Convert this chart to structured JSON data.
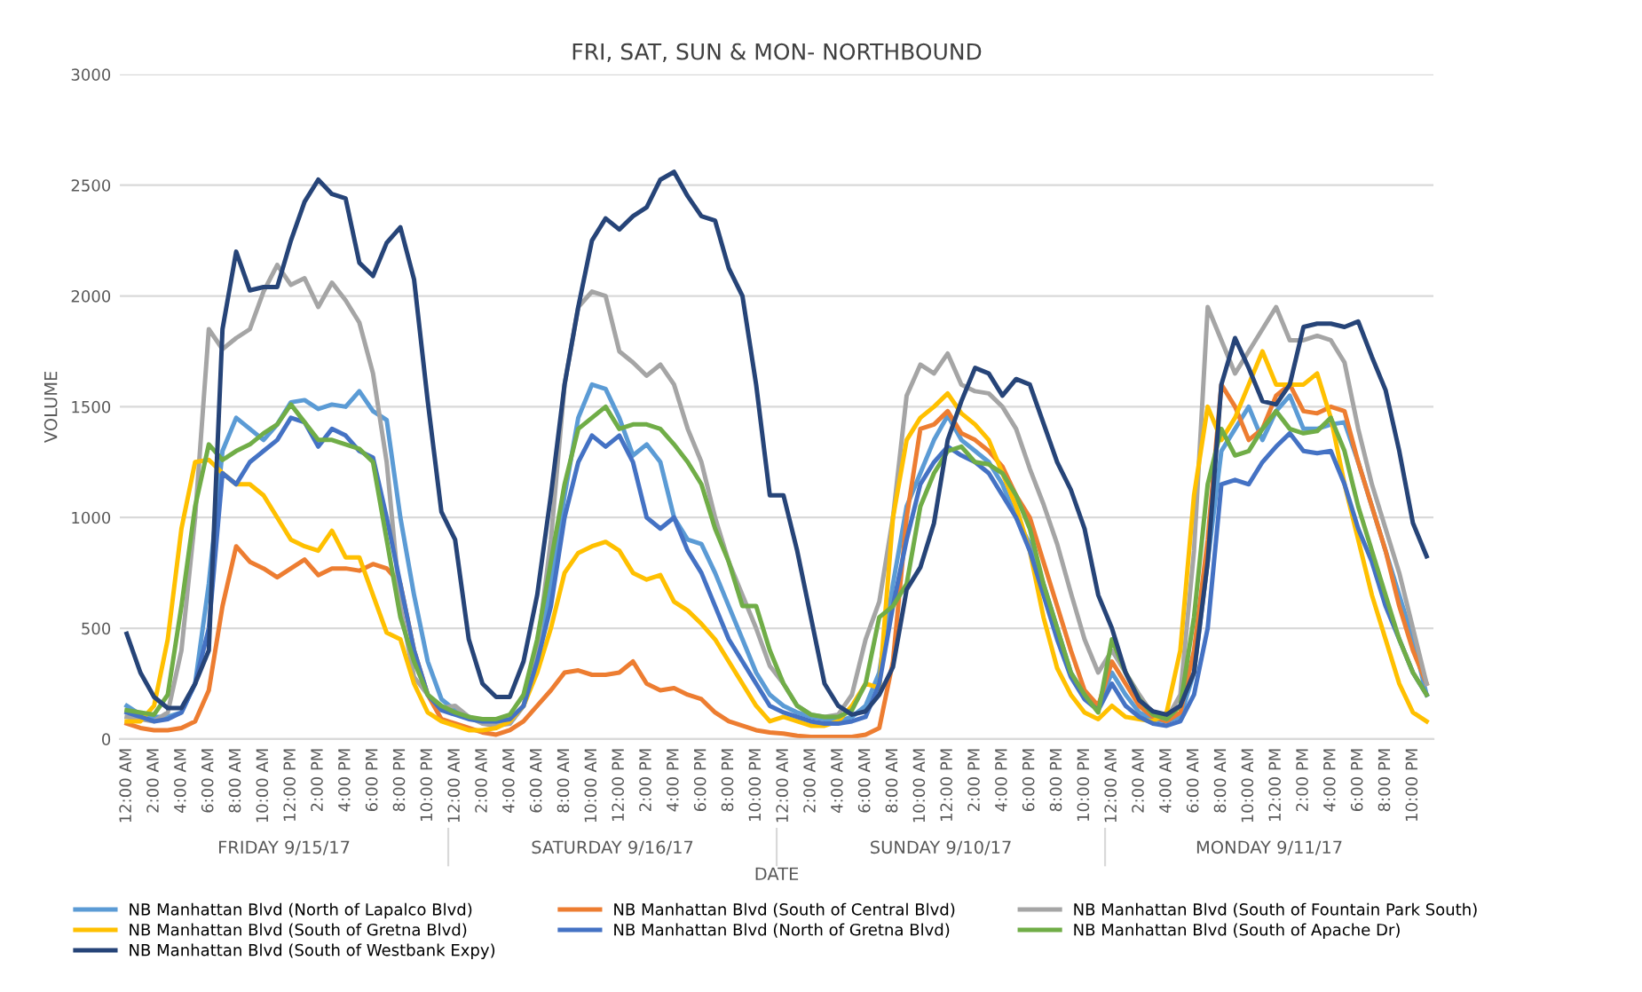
{
  "chart_data": {
    "type": "line",
    "title": "FRI, SAT, SUN & MON- NORTHBOUND",
    "xlabel": "DATE",
    "ylabel": "VOLUME",
    "categories": [
      "12:00 AM",
      null,
      "2:00 AM",
      null,
      "4:00 AM",
      null,
      "6:00 AM",
      null,
      "8:00 AM",
      null,
      "10:00 AM",
      null,
      "12:00 PM",
      null,
      "2:00 PM",
      null,
      "4:00 PM",
      null,
      "6:00 PM",
      null,
      "8:00 PM",
      null,
      "10:00 PM",
      null,
      "12:00 AM",
      null,
      "2:00 AM",
      null,
      "4:00 AM",
      null,
      "6:00 AM",
      null,
      "8:00 AM",
      null,
      "10:00 AM",
      null,
      "12:00 PM",
      null,
      "2:00 PM",
      null,
      "4:00 PM",
      null,
      "6:00 PM",
      null,
      "8:00 PM",
      null,
      "10:00 PM",
      null,
      "12:00 AM",
      null,
      "2:00 AM",
      null,
      "4:00 AM",
      null,
      "6:00 AM",
      null,
      "8:00 AM",
      null,
      "10:00 AM",
      null,
      "12:00 PM",
      null,
      "2:00 PM",
      null,
      "4:00 PM",
      null,
      "6:00 PM",
      null,
      "8:00 PM",
      null,
      "10:00 PM",
      null,
      "12:00 AM",
      null,
      "2:00 AM",
      null,
      "4:00 AM",
      null,
      "6:00 AM",
      null,
      "8:00 AM",
      null,
      "10:00 AM",
      null,
      "12:00 PM",
      null,
      "2:00 PM",
      null,
      "4:00 PM",
      null,
      "6:00 PM",
      null,
      "8:00 PM",
      null,
      "10:00 PM",
      null
    ],
    "annotations": [
      "FRIDAY 9/15/17",
      "SATURDAY 9/16/17",
      "SUNDAY 9/10/17",
      "MONDAY 9/11/17"
    ],
    "ylim": [
      0,
      3000
    ],
    "yticks": [
      0,
      500,
      1000,
      1500,
      2000,
      2500,
      3000
    ],
    "grid": "y",
    "legend": "bottom",
    "marker": "none",
    "line_style": "solid",
    "series": [
      {
        "name": "NB Manhattan Blvd (North of Lapalco Blvd)",
        "color": "#5b9bd5",
        "values": [
          150,
          110,
          100,
          100,
          120,
          250,
          700,
          1300,
          1450,
          1400,
          1350,
          1420,
          1520,
          1530,
          1490,
          1510,
          1500,
          1570,
          1480,
          1440,
          1000,
          650,
          350,
          180,
          130,
          100,
          80,
          70,
          70,
          150,
          350,
          700,
          1100,
          1450,
          1600,
          1580,
          1450,
          1280,
          1330,
          1250,
          1000,
          900,
          880,
          750,
          600,
          450,
          300,
          200,
          150,
          120,
          100,
          90,
          80,
          100,
          150,
          300,
          700,
          1050,
          1200,
          1350,
          1460,
          1350,
          1300,
          1250,
          1150,
          1000,
          880,
          700,
          500,
          300,
          200,
          150,
          300,
          200,
          120,
          90,
          80,
          100,
          300,
          800,
          1300,
          1400,
          1500,
          1350,
          1480,
          1550,
          1400,
          1400,
          1420,
          1430,
          1250,
          1050,
          850,
          650,
          450,
          200
        ]
      },
      {
        "name": "NB Manhattan Blvd (South of Central Blvd)",
        "color": "#ed7d31",
        "values": [
          70,
          50,
          40,
          40,
          50,
          80,
          220,
          600,
          870,
          800,
          770,
          730,
          770,
          810,
          740,
          770,
          770,
          760,
          790,
          770,
          700,
          400,
          200,
          90,
          70,
          50,
          30,
          20,
          40,
          80,
          150,
          220,
          300,
          310,
          290,
          290,
          300,
          350,
          250,
          220,
          230,
          200,
          180,
          120,
          80,
          60,
          40,
          30,
          25,
          15,
          10,
          10,
          10,
          10,
          20,
          50,
          350,
          1000,
          1400,
          1420,
          1480,
          1380,
          1350,
          1300,
          1230,
          1100,
          1000,
          800,
          600,
          400,
          220,
          150,
          350,
          250,
          150,
          100,
          80,
          120,
          400,
          900,
          1600,
          1500,
          1350,
          1400,
          1550,
          1600,
          1480,
          1470,
          1500,
          1480,
          1250,
          1050,
          850,
          600,
          400,
          250
        ]
      },
      {
        "name": "NB Manhattan Blvd (South of Fountain Park South)",
        "color": "#a5a5a5",
        "values": [
          100,
          90,
          80,
          120,
          400,
          1000,
          1850,
          1760,
          1810,
          1850,
          2020,
          2140,
          2050,
          2080,
          1950,
          2060,
          1980,
          1880,
          1650,
          1250,
          600,
          280,
          200,
          140,
          150,
          100,
          70,
          60,
          70,
          150,
          400,
          900,
          1600,
          1950,
          2020,
          2000,
          1750,
          1700,
          1640,
          1690,
          1600,
          1400,
          1250,
          1000,
          800,
          650,
          500,
          330,
          250,
          150,
          110,
          100,
          110,
          200,
          450,
          620,
          1000,
          1550,
          1690,
          1650,
          1740,
          1600,
          1570,
          1560,
          1500,
          1400,
          1220,
          1060,
          880,
          660,
          450,
          300,
          400,
          300,
          200,
          110,
          90,
          200,
          850,
          1950,
          1800,
          1650,
          1750,
          1850,
          1950,
          1800,
          1800,
          1820,
          1800,
          1700,
          1400,
          1150,
          950,
          750,
          500,
          250
        ]
      },
      {
        "name": "NB Manhattan Blvd (South of Gretna Blvd)",
        "color": "#ffc000",
        "values": [
          80,
          80,
          150,
          450,
          950,
          1250,
          1260,
          1200,
          1150,
          1150,
          1100,
          1000,
          900,
          870,
          850,
          940,
          820,
          820,
          650,
          480,
          450,
          250,
          120,
          80,
          60,
          40,
          40,
          50,
          80,
          150,
          300,
          500,
          750,
          840,
          870,
          890,
          850,
          750,
          720,
          740,
          620,
          580,
          520,
          450,
          350,
          250,
          150,
          80,
          100,
          80,
          60,
          60,
          80,
          150,
          250,
          230,
          1000,
          1350,
          1450,
          1500,
          1560,
          1470,
          1420,
          1350,
          1200,
          1050,
          850,
          550,
          320,
          200,
          120,
          90,
          150,
          100,
          90,
          80,
          120,
          400,
          1100,
          1500,
          1350,
          1450,
          1600,
          1750,
          1600,
          1600,
          1600,
          1650,
          1450,
          1150,
          900,
          650,
          450,
          250,
          120,
          80
        ]
      },
      {
        "name": "NB Manhattan Blvd (North of Gretna Blvd)",
        "color": "#4472c4",
        "values": [
          120,
          100,
          80,
          90,
          120,
          250,
          500,
          1200,
          1150,
          1250,
          1300,
          1350,
          1450,
          1430,
          1320,
          1400,
          1370,
          1300,
          1270,
          1000,
          700,
          400,
          200,
          130,
          110,
          90,
          80,
          80,
          90,
          150,
          350,
          600,
          1000,
          1250,
          1370,
          1320,
          1370,
          1250,
          1000,
          950,
          1000,
          850,
          750,
          600,
          450,
          350,
          250,
          150,
          120,
          100,
          80,
          70,
          70,
          80,
          100,
          250,
          600,
          900,
          1150,
          1250,
          1320,
          1280,
          1250,
          1200,
          1100,
          1000,
          850,
          650,
          450,
          280,
          180,
          130,
          250,
          150,
          100,
          70,
          60,
          80,
          200,
          500,
          1150,
          1170,
          1150,
          1250,
          1320,
          1380,
          1300,
          1290,
          1300,
          1150,
          950,
          800,
          600,
          450,
          300,
          200
        ]
      },
      {
        "name": "NB Manhattan Blvd (South of Apache Dr)",
        "color": "#70ad47",
        "values": [
          130,
          120,
          110,
          200,
          600,
          1050,
          1330,
          1260,
          1300,
          1330,
          1380,
          1420,
          1510,
          1430,
          1350,
          1350,
          1330,
          1310,
          1250,
          900,
          550,
          350,
          200,
          150,
          120,
          100,
          90,
          90,
          110,
          200,
          450,
          800,
          1150,
          1400,
          1450,
          1500,
          1400,
          1420,
          1420,
          1400,
          1330,
          1250,
          1150,
          950,
          800,
          600,
          600,
          400,
          250,
          150,
          110,
          100,
          100,
          130,
          250,
          550,
          600,
          700,
          1050,
          1200,
          1300,
          1320,
          1250,
          1240,
          1200,
          1100,
          950,
          700,
          500,
          300,
          200,
          120,
          450,
          300,
          180,
          110,
          90,
          150,
          550,
          1150,
          1400,
          1280,
          1300,
          1400,
          1480,
          1400,
          1380,
          1390,
          1450,
          1300,
          1050,
          850,
          650,
          450,
          300,
          200
        ]
      },
      {
        "name": "NB Manhattan Blvd (South of Westbank Expy)",
        "color": "#264478",
        "values": [
          475,
          300,
          190,
          140,
          140,
          250,
          400,
          1850,
          2200,
          2025,
          2040,
          2040,
          2250,
          2425,
          2525,
          2460,
          2440,
          2150,
          2090,
          2240,
          2310,
          2075,
          1525,
          1025,
          900,
          450,
          250,
          190,
          190,
          350,
          650,
          1100,
          1600,
          1950,
          2250,
          2350,
          2300,
          2360,
          2400,
          2525,
          2560,
          2450,
          2360,
          2340,
          2125,
          2000,
          1600,
          1100,
          1100,
          850,
          550,
          250,
          150,
          110,
          125,
          200,
          325,
          675,
          775,
          975,
          1350,
          1525,
          1675,
          1650,
          1550,
          1625,
          1600,
          1425,
          1250,
          1125,
          950,
          650,
          500,
          300,
          175,
          125,
          110,
          150,
          300,
          800,
          1600,
          1810,
          1675,
          1525,
          1510,
          1600,
          1860,
          1875,
          1875,
          1860,
          1885,
          1725,
          1575,
          1300,
          975,
          825
        ]
      }
    ]
  }
}
